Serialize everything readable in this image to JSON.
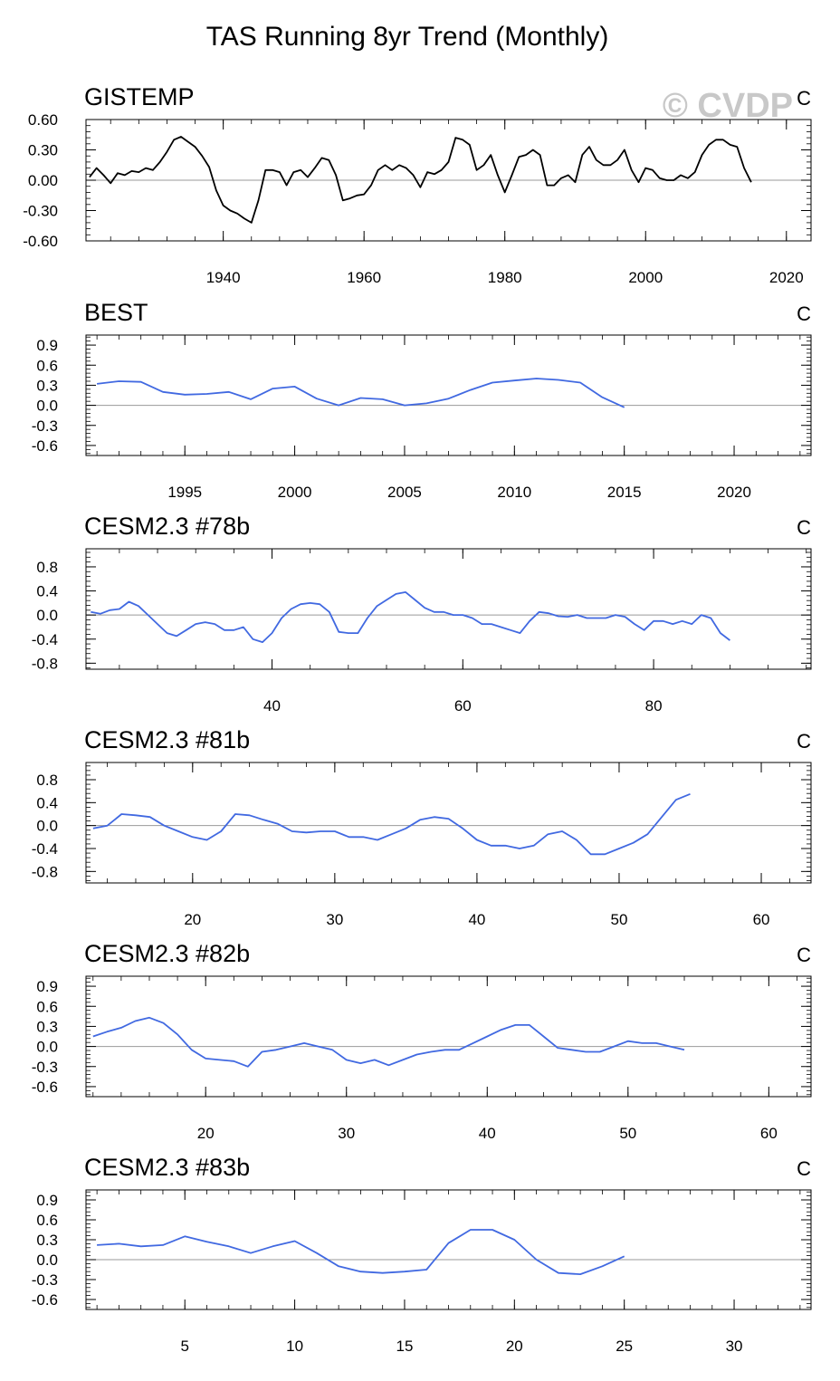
{
  "title": "TAS Running 8yr Trend (Monthly)",
  "watermark": "© CVDP",
  "colors": {
    "obs": "#000000",
    "model": "#4169e1",
    "zero": "#999999",
    "watermark": "#c8c8c8"
  },
  "chart_data": [
    {
      "type": "line",
      "name": "GISTEMP",
      "units": "C",
      "ylim": [
        -0.6,
        0.6
      ],
      "yticks": [
        -0.6,
        -0.3,
        0.0,
        0.3,
        0.6
      ],
      "ytick_labels": [
        "-0.60",
        "-0.30",
        "0.00",
        "0.30",
        "0.60"
      ],
      "xlim": [
        1920.5,
        2023.5
      ],
      "xticks": [
        1940,
        1960,
        1980,
        2000,
        2020
      ],
      "xtick_labels": [
        "1940",
        "1960",
        "1980",
        "2000",
        "2020"
      ],
      "series": [
        {
          "color": "obs",
          "x": [
            1921,
            1922,
            1923,
            1924,
            1925,
            1926,
            1927,
            1928,
            1929,
            1930,
            1931,
            1932,
            1933,
            1934,
            1935,
            1936,
            1937,
            1938,
            1939,
            1940,
            1941,
            1942,
            1943,
            1944,
            1945,
            1946,
            1947,
            1948,
            1949,
            1950,
            1951,
            1952,
            1953,
            1954,
            1955,
            1956,
            1957,
            1958,
            1959,
            1960,
            1961,
            1962,
            1963,
            1964,
            1965,
            1966,
            1967,
            1968,
            1969,
            1970,
            1971,
            1972,
            1973,
            1974,
            1975,
            1976,
            1977,
            1978,
            1979,
            1980,
            1981,
            1982,
            1983,
            1984,
            1985,
            1986,
            1987,
            1988,
            1989,
            1990,
            1991,
            1992,
            1993,
            1994,
            1995,
            1996,
            1997,
            1998,
            1999,
            2000,
            2001,
            2002,
            2003,
            2004,
            2005,
            2006,
            2007,
            2008,
            2009,
            2010,
            2011,
            2012,
            2013,
            2014,
            2015
          ],
          "y": [
            0.03,
            0.12,
            0.05,
            -0.03,
            0.07,
            0.05,
            0.09,
            0.08,
            0.12,
            0.1,
            0.18,
            0.28,
            0.4,
            0.43,
            0.38,
            0.33,
            0.24,
            0.13,
            -0.1,
            -0.25,
            -0.3,
            -0.33,
            -0.38,
            -0.42,
            -0.2,
            0.1,
            0.1,
            0.08,
            -0.05,
            0.08,
            0.1,
            0.03,
            0.12,
            0.22,
            0.2,
            0.05,
            -0.2,
            -0.18,
            -0.15,
            -0.14,
            -0.05,
            0.1,
            0.15,
            0.1,
            0.15,
            0.12,
            0.05,
            -0.07,
            0.08,
            0.06,
            0.1,
            0.18,
            0.42,
            0.4,
            0.35,
            0.1,
            0.15,
            0.25,
            0.05,
            -0.12,
            0.05,
            0.23,
            0.25,
            0.3,
            0.25,
            -0.05,
            -0.05,
            0.02,
            0.05,
            -0.02,
            0.25,
            0.33,
            0.2,
            0.15,
            0.15,
            0.2,
            0.3,
            0.1,
            -0.02,
            0.12,
            0.1,
            0.02,
            0.0,
            0.0,
            0.05,
            0.02,
            0.08,
            0.25,
            0.35,
            0.4,
            0.4,
            0.35,
            0.33,
            0.12,
            -0.02
          ]
        }
      ]
    },
    {
      "type": "line",
      "name": "BEST",
      "units": "C",
      "ylim": [
        -0.75,
        1.05
      ],
      "yticks": [
        -0.6,
        -0.3,
        0.0,
        0.3,
        0.6,
        0.9
      ],
      "ytick_labels": [
        "-0.6",
        "-0.3",
        "0.0",
        "0.3",
        "0.6",
        "0.9"
      ],
      "xlim": [
        1990.5,
        2023.5
      ],
      "xticks": [
        1995,
        2000,
        2005,
        2010,
        2015,
        2020
      ],
      "xtick_labels": [
        "1995",
        "2000",
        "2005",
        "2010",
        "2015",
        "2020"
      ],
      "series": [
        {
          "color": "model",
          "x": [
            1991,
            1992,
            1993,
            1994,
            1995,
            1996,
            1997,
            1998,
            1999,
            2000,
            2001,
            2002,
            2003,
            2004,
            2005,
            2006,
            2007,
            2008,
            2009,
            2010,
            2011,
            2012,
            2013,
            2014,
            2015
          ],
          "y": [
            0.32,
            0.36,
            0.35,
            0.2,
            0.16,
            0.17,
            0.2,
            0.09,
            0.25,
            0.28,
            0.1,
            0.0,
            0.11,
            0.09,
            0.0,
            0.03,
            0.1,
            0.23,
            0.34,
            0.37,
            0.4,
            0.38,
            0.34,
            0.12,
            -0.03
          ]
        }
      ]
    },
    {
      "type": "line",
      "name": "CESM2.3 #78b",
      "units": "C",
      "ylim": [
        -0.9,
        1.1
      ],
      "yticks": [
        -0.8,
        -0.4,
        0.0,
        0.4,
        0.8
      ],
      "ytick_labels": [
        "-0.8",
        "-0.4",
        "0.0",
        "0.4",
        "0.8"
      ],
      "xlim": [
        20.5,
        96.5
      ],
      "xticks": [
        40,
        60,
        80
      ],
      "xtick_labels": [
        "40",
        "60",
        "80"
      ],
      "series": [
        {
          "color": "model",
          "x": [
            21,
            22,
            23,
            24,
            25,
            26,
            27,
            28,
            29,
            30,
            31,
            32,
            33,
            34,
            35,
            36,
            37,
            38,
            39,
            40,
            41,
            42,
            43,
            44,
            45,
            46,
            47,
            48,
            49,
            50,
            51,
            52,
            53,
            54,
            55,
            56,
            57,
            58,
            59,
            60,
            61,
            62,
            63,
            64,
            65,
            66,
            67,
            68,
            69,
            70,
            71,
            72,
            73,
            74,
            75,
            76,
            77,
            78,
            79,
            80,
            81,
            82,
            83,
            84,
            85,
            86,
            87,
            88
          ],
          "y": [
            0.05,
            0.02,
            0.08,
            0.1,
            0.22,
            0.15,
            0.0,
            -0.15,
            -0.3,
            -0.35,
            -0.25,
            -0.15,
            -0.12,
            -0.15,
            -0.25,
            -0.25,
            -0.2,
            -0.4,
            -0.45,
            -0.3,
            -0.05,
            0.1,
            0.18,
            0.2,
            0.18,
            0.05,
            -0.28,
            -0.3,
            -0.3,
            -0.05,
            0.15,
            0.25,
            0.35,
            0.38,
            0.25,
            0.12,
            0.05,
            0.05,
            0.0,
            0.0,
            -0.05,
            -0.15,
            -0.15,
            -0.2,
            -0.25,
            -0.3,
            -0.1,
            0.05,
            0.03,
            -0.02,
            -0.03,
            0.0,
            -0.05,
            -0.05,
            -0.05,
            0.0,
            -0.03,
            -0.15,
            -0.25,
            -0.1,
            -0.1,
            -0.15,
            -0.1,
            -0.15,
            0.0,
            -0.05,
            -0.3,
            -0.42
          ]
        }
      ]
    },
    {
      "type": "line",
      "name": "CESM2.3 #81b",
      "units": "C",
      "ylim": [
        -1.0,
        1.1
      ],
      "yticks": [
        -0.8,
        -0.4,
        0.0,
        0.4,
        0.8
      ],
      "ytick_labels": [
        "-0.8",
        "-0.4",
        "0.0",
        "0.4",
        "0.8"
      ],
      "xlim": [
        12.5,
        63.5
      ],
      "xticks": [
        20,
        30,
        40,
        50,
        60
      ],
      "xtick_labels": [
        "20",
        "30",
        "40",
        "50",
        "60"
      ],
      "series": [
        {
          "color": "model",
          "x": [
            13,
            14,
            15,
            16,
            17,
            18,
            19,
            20,
            21,
            22,
            23,
            24,
            25,
            26,
            27,
            28,
            29,
            30,
            31,
            32,
            33,
            34,
            35,
            36,
            37,
            38,
            39,
            40,
            41,
            42,
            43,
            44,
            45,
            46,
            47,
            48,
            49,
            50,
            51,
            52,
            53,
            54,
            55
          ],
          "y": [
            -0.05,
            0.0,
            0.2,
            0.18,
            0.15,
            0.0,
            -0.1,
            -0.2,
            -0.25,
            -0.1,
            0.2,
            0.18,
            0.1,
            0.03,
            -0.1,
            -0.12,
            -0.1,
            -0.1,
            -0.2,
            -0.2,
            -0.25,
            -0.15,
            -0.05,
            0.1,
            0.15,
            0.12,
            -0.05,
            -0.25,
            -0.35,
            -0.35,
            -0.4,
            -0.35,
            -0.15,
            -0.1,
            -0.25,
            -0.5,
            -0.5,
            -0.4,
            -0.3,
            -0.15,
            0.15,
            0.45,
            0.55
          ]
        }
      ]
    },
    {
      "type": "line",
      "name": "CESM2.3 #82b",
      "units": "C",
      "ylim": [
        -0.75,
        1.05
      ],
      "yticks": [
        -0.6,
        -0.3,
        0.0,
        0.3,
        0.6,
        0.9
      ],
      "ytick_labels": [
        "-0.6",
        "-0.3",
        "0.0",
        "0.3",
        "0.6",
        "0.9"
      ],
      "xlim": [
        11.5,
        63.0
      ],
      "xticks": [
        20,
        30,
        40,
        50,
        60
      ],
      "xtick_labels": [
        "20",
        "30",
        "40",
        "50",
        "60"
      ],
      "series": [
        {
          "color": "model",
          "x": [
            12,
            13,
            14,
            15,
            16,
            17,
            18,
            19,
            20,
            21,
            22,
            23,
            24,
            25,
            26,
            27,
            28,
            29,
            30,
            31,
            32,
            33,
            34,
            35,
            36,
            37,
            38,
            39,
            40,
            41,
            42,
            43,
            44,
            45,
            46,
            47,
            48,
            49,
            50,
            51,
            52,
            53,
            54
          ],
          "y": [
            0.15,
            0.22,
            0.28,
            0.38,
            0.43,
            0.35,
            0.18,
            -0.05,
            -0.18,
            -0.2,
            -0.22,
            -0.3,
            -0.08,
            -0.05,
            0.0,
            0.05,
            0.0,
            -0.05,
            -0.2,
            -0.25,
            -0.2,
            -0.28,
            -0.2,
            -0.12,
            -0.08,
            -0.05,
            -0.05,
            0.05,
            0.15,
            0.25,
            0.32,
            0.32,
            0.15,
            -0.02,
            -0.05,
            -0.08,
            -0.08,
            0.0,
            0.08,
            0.05,
            0.05,
            0.0,
            -0.05
          ]
        }
      ]
    },
    {
      "type": "line",
      "name": "CESM2.3 #83b",
      "units": "C",
      "ylim": [
        -0.75,
        1.05
      ],
      "yticks": [
        -0.6,
        -0.3,
        0.0,
        0.3,
        0.6,
        0.9
      ],
      "ytick_labels": [
        "-0.6",
        "-0.3",
        "0.0",
        "0.3",
        "0.6",
        "0.9"
      ],
      "xlim": [
        0.5,
        33.5
      ],
      "xticks": [
        5,
        10,
        15,
        20,
        25,
        30
      ],
      "xtick_labels": [
        "5",
        "10",
        "15",
        "20",
        "25",
        "30"
      ],
      "series": [
        {
          "color": "model",
          "x": [
            1,
            2,
            3,
            4,
            5,
            6,
            7,
            8,
            9,
            10,
            11,
            12,
            13,
            14,
            15,
            16,
            17,
            18,
            19,
            20,
            21,
            22,
            23,
            24,
            25
          ],
          "y": [
            0.22,
            0.24,
            0.2,
            0.22,
            0.35,
            0.27,
            0.2,
            0.1,
            0.2,
            0.28,
            0.1,
            -0.1,
            -0.18,
            -0.2,
            -0.18,
            -0.15,
            0.25,
            0.45,
            0.45,
            0.3,
            0.0,
            -0.2,
            -0.22,
            -0.1,
            0.05
          ]
        }
      ]
    }
  ]
}
